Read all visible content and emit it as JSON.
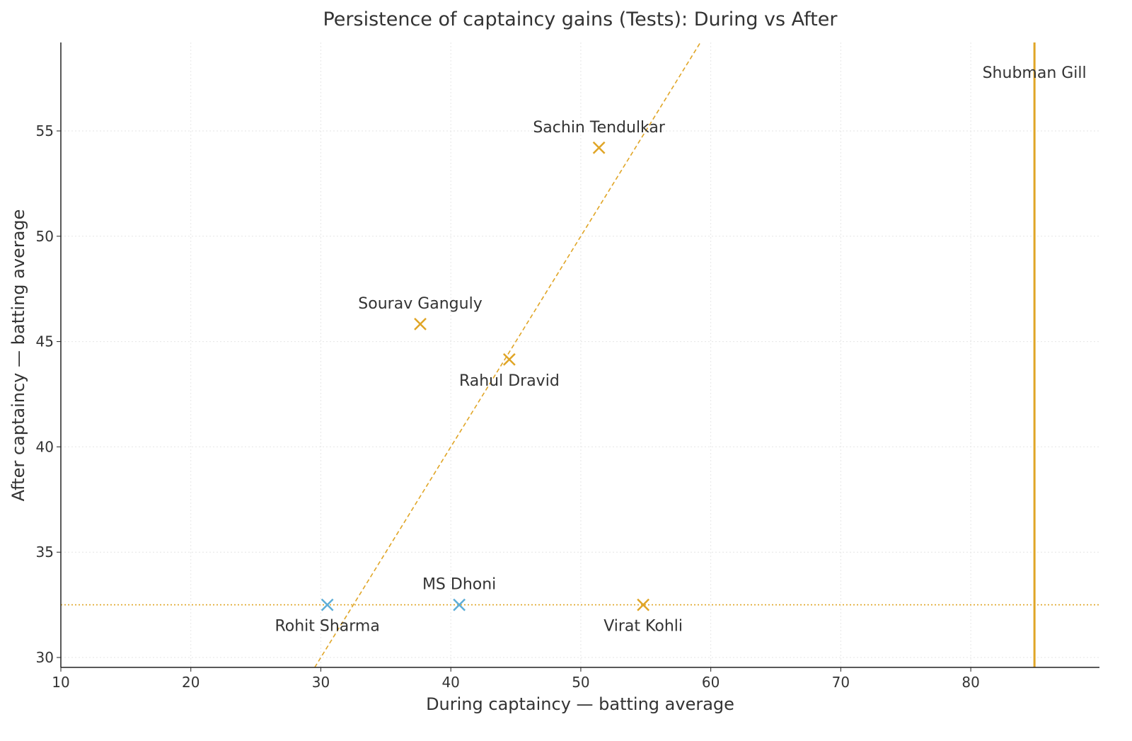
{
  "chart_data": {
    "type": "scatter",
    "title": "Persistence of captaincy gains (Tests): During vs After",
    "xlabel": "During captaincy — batting average",
    "ylabel": "After captaincy — batting average",
    "xlim": [
      10,
      89.9
    ],
    "ylim": [
      29.53,
      59.2
    ],
    "xticks": [
      10,
      20,
      30,
      40,
      50,
      60,
      70,
      80
    ],
    "yticks": [
      30,
      35,
      40,
      45,
      50,
      55
    ],
    "grid": true,
    "colors": {
      "highlight": "#E0A526",
      "other": "#5DADD6",
      "axis": "#222222",
      "grid": "#e6e6e6"
    },
    "points": [
      {
        "name": "Sachin Tendulkar",
        "x": 51.4,
        "y": 54.2,
        "color": "#E0A526",
        "label_pos": "above"
      },
      {
        "name": "Sourav Ganguly",
        "x": 37.65,
        "y": 45.83,
        "color": "#E0A526",
        "label_pos": "above"
      },
      {
        "name": "Rahul Dravid",
        "x": 44.5,
        "y": 44.15,
        "color": "#E0A526",
        "label_pos": "below"
      },
      {
        "name": "Rohit Sharma",
        "x": 30.5,
        "y": 32.5,
        "color": "#5DADD6",
        "label_pos": "below"
      },
      {
        "name": "MS Dhoni",
        "x": 40.65,
        "y": 32.5,
        "color": "#5DADD6",
        "label_pos": "above"
      },
      {
        "name": "Virat Kohli",
        "x": 54.8,
        "y": 32.5,
        "color": "#E0A526",
        "label_pos": "below"
      }
    ],
    "vertical_marker": {
      "name": "Shubman Gill",
      "x": 84.9,
      "color": "#E0A526"
    },
    "reference_lines": [
      {
        "type": "diagonal",
        "equation": "y = x",
        "style": "dashed",
        "color": "#E0A526"
      },
      {
        "type": "horizontal",
        "y": 32.5,
        "style": "dotted",
        "color": "#E0A526"
      }
    ]
  }
}
